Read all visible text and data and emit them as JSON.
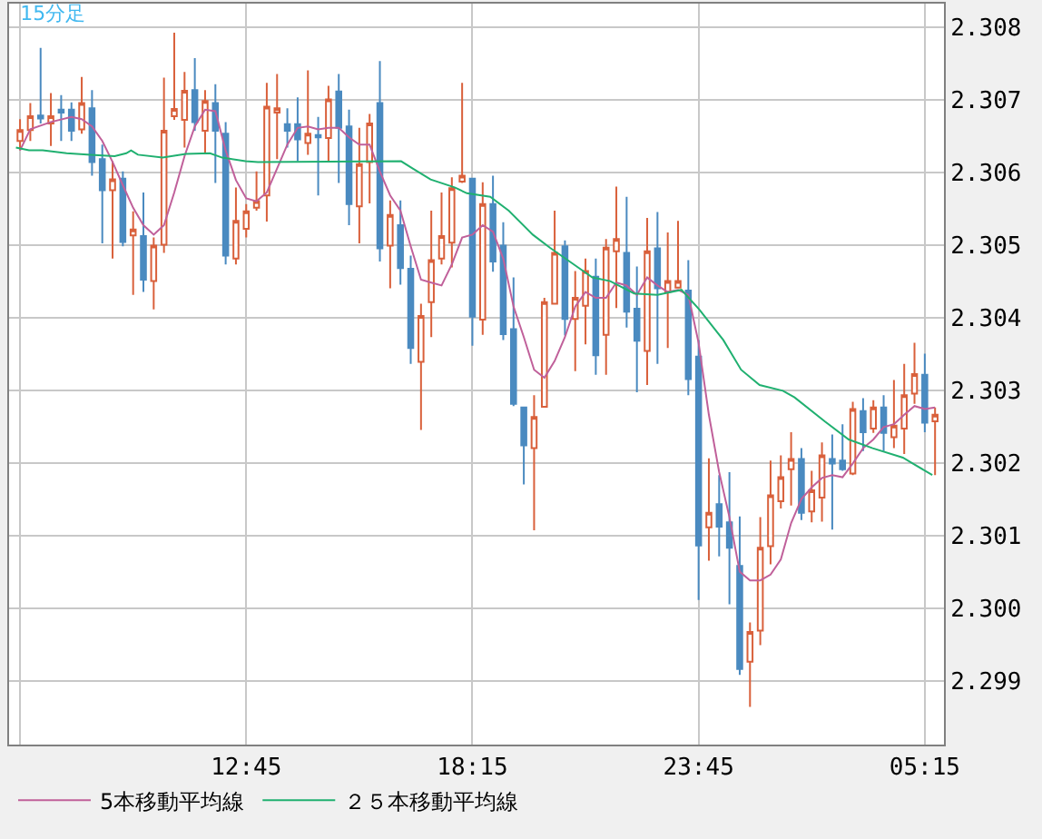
{
  "chart_data": {
    "type": "candlestick",
    "title": "15分足",
    "x": [
      "--01-01T07:15",
      "--01-01T07:30",
      "--01-01T07:45",
      "--01-01T08:00",
      "--01-01T08:15",
      "--01-01T08:30",
      "--01-01T08:45",
      "--01-01T09:00",
      "--01-01T09:15",
      "--01-01T09:30",
      "--01-01T09:45",
      "--01-01T10:00",
      "--01-01T10:15",
      "--01-01T10:30",
      "--01-01T10:45",
      "--01-01T11:00",
      "--01-01T11:15",
      "--01-01T11:30",
      "--01-01T11:45",
      "--01-01T12:00",
      "--01-01T12:15",
      "--01-01T12:30",
      "--01-01T12:45",
      "--01-01T13:00",
      "--01-01T13:15",
      "--01-01T13:30",
      "--01-01T13:45",
      "--01-01T14:00",
      "--01-01T14:15",
      "--01-01T14:30",
      "--01-01T14:45",
      "--01-01T15:00",
      "--01-01T15:15",
      "--01-01T15:30",
      "--01-01T15:45",
      "--01-01T16:00",
      "--01-01T16:15",
      "--01-01T16:30",
      "--01-01T16:45",
      "--01-01T17:00",
      "--01-01T17:15",
      "--01-01T17:30",
      "--01-01T17:45",
      "--01-01T18:00",
      "--01-01T18:15",
      "--01-01T18:30",
      "--01-01T18:45",
      "--01-01T19:00",
      "--01-01T19:15",
      "--01-01T19:30",
      "--01-01T19:45",
      "--01-01T20:00",
      "--01-01T20:15",
      "--01-01T20:30",
      "--01-01T20:45",
      "--01-01T21:00",
      "--01-01T21:15",
      "--01-01T21:30",
      "--01-01T21:45",
      "--01-01T22:00",
      "--01-01T22:15",
      "--01-01T22:30",
      "--01-01T22:45",
      "--01-01T23:00",
      "--01-01T23:15",
      "--01-01T23:30",
      "--01-01T23:45",
      "--01-02T00:00",
      "--01-02T00:15",
      "--01-02T00:30",
      "--01-02T00:45",
      "--01-02T01:00",
      "--01-02T01:15",
      "--01-02T01:30",
      "--01-02T01:45",
      "--01-02T02:00",
      "--01-02T02:15",
      "--01-02T02:30",
      "--01-02T02:45",
      "--01-02T03:00",
      "--01-02T03:15",
      "--01-02T03:30",
      "--01-02T03:45",
      "--01-02T04:00",
      "--01-02T04:15",
      "--01-02T04:30",
      "--01-02T04:45",
      "--01-02T05:00",
      "--01-02T05:15",
      "--01-02T05:30"
    ],
    "ohlc": [
      [
        2.30643,
        2.30673,
        2.3063,
        2.30658
      ],
      [
        2.30658,
        2.30695,
        2.30643,
        2.30677
      ],
      [
        2.30678,
        2.30771,
        2.30667,
        2.30674
      ],
      [
        2.30667,
        2.30709,
        2.30636,
        2.30677
      ],
      [
        2.30686,
        2.30706,
        2.30643,
        2.30682
      ],
      [
        2.30686,
        2.30696,
        2.30643,
        2.30657
      ],
      [
        2.30659,
        2.30731,
        2.30653,
        2.30695
      ],
      [
        2.30688,
        2.30713,
        2.30595,
        2.30614
      ],
      [
        2.30618,
        2.30638,
        2.30502,
        2.30575
      ],
      [
        2.30575,
        2.30615,
        2.30481,
        2.3059
      ],
      [
        2.30591,
        2.30601,
        2.30498,
        2.30504
      ],
      [
        2.30513,
        2.30546,
        2.30431,
        2.30521
      ],
      [
        2.30512,
        2.30572,
        2.30435,
        2.30452
      ],
      [
        2.3045,
        2.3051,
        2.30411,
        2.30499
      ],
      [
        2.305,
        2.3073,
        2.30489,
        2.30657
      ],
      [
        2.30677,
        2.30792,
        2.30672,
        2.30687
      ],
      [
        2.30672,
        2.30738,
        2.30634,
        2.30712
      ],
      [
        2.30713,
        2.30757,
        2.30657,
        2.30669
      ],
      [
        2.30657,
        2.30713,
        2.30626,
        2.30698
      ],
      [
        2.30695,
        2.30721,
        2.30585,
        2.30657
      ],
      [
        2.30653,
        2.30669,
        2.30473,
        2.30485
      ],
      [
        2.30481,
        2.30579,
        2.30473,
        2.30533
      ],
      [
        2.30522,
        2.30556,
        2.3051,
        2.30546
      ],
      [
        2.30551,
        2.30601,
        2.30547,
        2.3056
      ],
      [
        2.30568,
        2.30723,
        2.30532,
        2.3069
      ],
      [
        2.30682,
        2.30735,
        2.30618,
        2.30688
      ],
      [
        2.30666,
        2.30688,
        2.30634,
        2.30657
      ],
      [
        2.30666,
        2.30703,
        2.30615,
        2.30645
      ],
      [
        2.3064,
        2.3074,
        2.30624,
        2.30653
      ],
      [
        2.30651,
        2.30676,
        2.30568,
        2.30648
      ],
      [
        2.30647,
        2.30719,
        2.30614,
        2.307
      ],
      [
        2.30711,
        2.30735,
        2.30585,
        2.30661
      ],
      [
        2.30663,
        2.30686,
        2.30527,
        2.30556
      ],
      [
        2.30553,
        2.30661,
        2.30502,
        2.30611
      ],
      [
        2.30614,
        2.3068,
        2.30557,
        2.30667
      ],
      [
        2.30695,
        2.30753,
        2.30477,
        2.30495
      ],
      [
        2.30499,
        2.30561,
        2.3044,
        2.30541
      ],
      [
        2.30527,
        2.30561,
        2.30445,
        2.30468
      ],
      [
        2.30467,
        2.30485,
        2.30336,
        2.30358
      ],
      [
        2.30339,
        2.30419,
        2.30245,
        2.30402
      ],
      [
        2.30421,
        2.30547,
        2.30373,
        2.30479
      ],
      [
        2.30481,
        2.30572,
        2.30473,
        2.30512
      ],
      [
        2.30503,
        2.30593,
        2.30469,
        2.30578
      ],
      [
        2.30587,
        2.30723,
        2.30585,
        2.30595
      ],
      [
        2.30591,
        2.30592,
        2.30361,
        2.30401
      ],
      [
        2.30397,
        2.30586,
        2.30376,
        2.30556
      ],
      [
        2.30556,
        2.30595,
        2.30463,
        2.30477
      ],
      [
        2.30499,
        2.30531,
        2.30369,
        2.30377
      ],
      [
        2.30384,
        2.30455,
        2.30278,
        2.30281
      ],
      [
        2.30276,
        2.30276,
        2.3017,
        2.30224
      ],
      [
        2.3022,
        2.30293,
        2.30107,
        2.30263
      ],
      [
        2.30277,
        2.30427,
        2.30276,
        2.30421
      ],
      [
        2.30419,
        2.30547,
        2.30419,
        2.30489
      ],
      [
        2.30498,
        2.30506,
        2.30375,
        2.30398
      ],
      [
        2.30398,
        2.30464,
        2.30326,
        2.30427
      ],
      [
        2.30416,
        2.30481,
        2.30363,
        2.30464
      ],
      [
        2.30456,
        2.30481,
        2.30321,
        2.30348
      ],
      [
        2.30376,
        2.30508,
        2.30321,
        2.30496
      ],
      [
        2.30491,
        2.3058,
        2.30413,
        2.30508
      ],
      [
        2.30489,
        2.30566,
        2.30386,
        2.30408
      ],
      [
        2.30412,
        2.3047,
        2.30297,
        2.30368
      ],
      [
        2.30354,
        2.30537,
        2.30307,
        2.30491
      ],
      [
        2.30495,
        2.30545,
        2.30336,
        2.3044
      ],
      [
        2.30435,
        2.30517,
        2.30358,
        2.3045
      ],
      [
        2.30441,
        2.30533,
        2.3044,
        2.3045
      ],
      [
        2.30437,
        2.30479,
        2.30293,
        2.30315
      ],
      [
        2.30346,
        2.30369,
        2.30011,
        2.30086
      ],
      [
        2.30111,
        2.30206,
        2.30065,
        2.30131
      ],
      [
        2.30143,
        2.30183,
        2.30071,
        2.30112
      ],
      [
        2.30118,
        2.30187,
        2.30005,
        2.30083
      ],
      [
        2.30058,
        2.30126,
        2.29908,
        2.29916
      ],
      [
        2.29926,
        2.2998,
        2.29864,
        2.29967
      ],
      [
        2.29969,
        2.30125,
        2.29949,
        2.30083
      ],
      [
        2.30085,
        2.30203,
        2.3006,
        2.30155
      ],
      [
        2.30147,
        2.3021,
        2.30137,
        2.3018
      ],
      [
        2.30191,
        2.30242,
        2.30141,
        2.30205
      ],
      [
        2.30205,
        2.3022,
        2.30121,
        2.30131
      ],
      [
        2.30133,
        2.30189,
        2.30118,
        2.30162
      ],
      [
        2.30152,
        2.30228,
        2.30119,
        2.3021
      ],
      [
        2.30205,
        2.30239,
        2.30108,
        2.30199
      ],
      [
        2.30203,
        2.30253,
        2.30189,
        2.30191
      ],
      [
        2.30185,
        2.30284,
        2.30183,
        2.30274
      ],
      [
        2.30271,
        2.30289,
        2.30216,
        2.30242
      ],
      [
        2.30247,
        2.30286,
        2.30241,
        2.30276
      ],
      [
        2.30276,
        2.30293,
        2.30216,
        2.30241
      ],
      [
        2.30235,
        2.30314,
        2.3022,
        2.30251
      ],
      [
        2.30247,
        2.30336,
        2.30212,
        2.30293
      ],
      [
        2.30295,
        2.30365,
        2.30281,
        2.30322
      ],
      [
        2.30321,
        2.3035,
        2.30242,
        2.30255
      ],
      [
        2.30257,
        2.30276,
        2.30183,
        2.30266
      ]
    ],
    "colors": [
      "#d9603b",
      "#d9603b",
      "#4a8ac0",
      "#d9603b",
      "#4a8ac0",
      "#4a8ac0",
      "#d9603b",
      "#4a8ac0",
      "#4a8ac0",
      "#d9603b",
      "#4a8ac0",
      "#d9603b",
      "#4a8ac0",
      "#d9603b",
      "#d9603b",
      "#d9603b",
      "#d9603b",
      "#4a8ac0",
      "#d9603b",
      "#4a8ac0",
      "#4a8ac0",
      "#d9603b",
      "#d9603b",
      "#d9603b",
      "#d9603b",
      "#d9603b",
      "#4a8ac0",
      "#4a8ac0",
      "#d9603b",
      "#4a8ac0",
      "#d9603b",
      "#4a8ac0",
      "#4a8ac0",
      "#d9603b",
      "#d9603b",
      "#4a8ac0",
      "#d9603b",
      "#4a8ac0",
      "#4a8ac0",
      "#d9603b",
      "#d9603b",
      "#d9603b",
      "#d9603b",
      "#d9603b",
      "#4a8ac0",
      "#d9603b",
      "#4a8ac0",
      "#4a8ac0",
      "#4a8ac0",
      "#4a8ac0",
      "#d9603b",
      "#d9603b",
      "#d9603b",
      "#4a8ac0",
      "#d9603b",
      "#d9603b",
      "#4a8ac0",
      "#d9603b",
      "#d9603b",
      "#4a8ac0",
      "#4a8ac0",
      "#d9603b",
      "#4a8ac0",
      "#d9603b",
      "#d9603b",
      "#4a8ac0",
      "#4a8ac0",
      "#d9603b",
      "#4a8ac0",
      "#4a8ac0",
      "#4a8ac0",
      "#d9603b",
      "#d9603b",
      "#d9603b",
      "#d9603b",
      "#d9603b",
      "#4a8ac0",
      "#d9603b",
      "#d9603b",
      "#4a8ac0",
      "#4a8ac0",
      "#d9603b",
      "#4a8ac0",
      "#d9603b",
      "#4a8ac0",
      "#d9603b",
      "#d9603b",
      "#d9603b",
      "#4a8ac0",
      "#d9603b"
    ],
    "series": [
      {
        "type": "line",
        "name": "5本移動平均線",
        "color": "#c0609a",
        "x": [
          "--01-01T07:15",
          "--01-01T07:30",
          "--01-01T08:00",
          "--01-01T08:30",
          "--01-01T08:45",
          "--01-01T09:00",
          "--01-01T09:15",
          "--01-01T09:30",
          "--01-01T09:45",
          "--01-01T10:00",
          "--01-01T10:15",
          "--01-01T10:30",
          "--01-01T10:45",
          "--01-01T11:00",
          "--01-01T11:15",
          "--01-01T11:30",
          "--01-01T11:45",
          "--01-01T12:00",
          "--01-01T12:15",
          "--01-01T12:30",
          "--01-01T12:45",
          "--01-01T13:00",
          "--01-01T13:15",
          "--01-01T13:30",
          "--01-01T13:45",
          "--01-01T14:00",
          "--01-01T14:15",
          "--01-01T14:30",
          "--01-01T14:45",
          "--01-01T15:00",
          "--01-01T15:15",
          "--01-01T15:30",
          "--01-01T15:45",
          "--01-01T16:00",
          "--01-01T16:15",
          "--01-01T16:30",
          "--01-01T16:45",
          "--01-01T17:00",
          "--01-01T17:15",
          "--01-01T17:30",
          "--01-01T17:45",
          "--01-01T18:00",
          "--01-01T18:15",
          "--01-01T18:30",
          "--01-01T18:45",
          "--01-01T19:00",
          "--01-01T19:15",
          "--01-01T19:30",
          "--01-01T19:45",
          "--01-01T20:00",
          "--01-01T20:15",
          "--01-01T20:30",
          "--01-01T20:45",
          "--01-01T21:00",
          "--01-01T21:15",
          "--01-01T21:30",
          "--01-01T21:45",
          "--01-01T22:00",
          "--01-01T22:15",
          "--01-01T22:30",
          "--01-01T22:45",
          "--01-01T23:00",
          "--01-01T23:15",
          "--01-01T23:30",
          "--01-01T23:45",
          "--01-02T00:00",
          "--01-02T00:15",
          "--01-02T00:30",
          "--01-02T00:45",
          "--01-02T01:00",
          "--01-02T01:15",
          "--01-02T01:30",
          "--01-02T01:45",
          "--01-02T02:00",
          "--01-02T02:15",
          "--01-02T02:30",
          "--01-02T02:45",
          "--01-02T03:00",
          "--01-02T03:15",
          "--01-02T03:30",
          "--01-02T03:45",
          "--01-02T04:00",
          "--01-02T04:15",
          "--01-02T04:30",
          "--01-02T04:45",
          "--01-02T05:00",
          "--01-02T05:15",
          "--01-02T05:30"
        ],
        "values": [
          2.3063,
          2.30659,
          2.30669,
          2.30676,
          2.30673,
          2.30663,
          2.30643,
          2.30614,
          2.30582,
          2.30551,
          2.30527,
          2.30514,
          2.30527,
          2.30572,
          2.30622,
          2.30663,
          2.30686,
          2.30684,
          2.3063,
          2.30589,
          2.30564,
          2.3056,
          2.30572,
          2.30605,
          2.30638,
          2.30661,
          2.30663,
          2.30659,
          2.30661,
          2.30661,
          2.30648,
          2.30638,
          2.30638,
          2.30601,
          2.30568,
          2.30547,
          2.30498,
          2.30452,
          2.30448,
          2.30444,
          2.30473,
          2.3051,
          2.30514,
          2.30527,
          2.30518,
          2.30481,
          2.30415,
          2.30373,
          2.30328,
          2.30317,
          2.3034,
          2.30373,
          2.30415,
          2.30435,
          2.30427,
          2.30427,
          2.30448,
          2.30444,
          2.30431,
          2.30455,
          2.30444,
          2.30435,
          2.30438,
          2.30431,
          2.30365,
          2.30266,
          2.30187,
          2.30125,
          2.3005,
          2.30038,
          2.30038,
          2.30046,
          2.30067,
          2.30117,
          2.3015,
          2.30166,
          2.30179,
          2.30183,
          2.3018,
          2.30199,
          2.3022,
          2.30232,
          2.30249,
          2.30253,
          2.30266,
          2.30278,
          2.30274,
          2.30276
        ]
      },
      {
        "type": "line",
        "name": "２５本移動平均線",
        "color": "#20b070",
        "x": [
          "--01-01T07:09",
          "--01-01T07:28",
          "--01-01T07:48",
          "--01-01T08:23",
          "--01-01T08:58",
          "--01-01T09:33",
          "--01-01T09:50",
          "--01-01T09:57",
          "--01-01T10:07",
          "--01-01T10:43",
          "--01-01T11:17",
          "--01-01T11:52",
          "--01-01T12:10",
          "--01-01T12:44",
          "--01-01T13:02",
          "--01-01T16:31",
          "--01-01T16:48",
          "--01-01T17:14",
          "--01-01T17:49",
          "--01-01T18:07",
          "--01-01T18:41",
          "--01-01T19:08",
          "--01-01T19:43",
          "--01-01T20:08",
          "--01-01T20:43",
          "--01-01T21:10",
          "--01-01T21:36",
          "--01-01T22:11",
          "--01-01T22:45",
          "--01-01T23:20",
          "--01-01T23:46",
          "--01-02T00:21",
          "--01-02T00:47",
          "--01-02T01:14",
          "--01-02T01:48",
          "--01-02T02:05",
          "--01-02T02:49",
          "--01-02T03:24",
          "--01-02T03:59",
          "--01-02T04:43",
          "--01-02T05:26"
        ],
        "values": [
          2.30634,
          2.3063,
          2.3063,
          2.30626,
          2.30624,
          2.30622,
          2.30626,
          2.3063,
          2.30624,
          2.3062,
          2.30625,
          2.30626,
          2.3062,
          2.30615,
          2.30614,
          2.30615,
          2.30605,
          2.3059,
          2.30579,
          2.30571,
          2.30566,
          2.30547,
          2.30514,
          2.30496,
          2.30473,
          2.30455,
          2.3045,
          2.30433,
          2.30431,
          2.30438,
          2.30411,
          2.30369,
          2.30328,
          2.30307,
          2.30299,
          2.3029,
          2.30257,
          2.30232,
          2.3022,
          2.30207,
          2.30183
        ]
      }
    ],
    "xlim": [
      "--01-01T06:59",
      "--01-02T05:43"
    ],
    "xticks": [
      {
        "value": "--01-01T07:15",
        "label": null
      },
      {
        "value": "--01-01T12:45",
        "label": "12:45"
      },
      {
        "value": "--01-01T18:15",
        "label": "18:15"
      },
      {
        "value": "--01-01T23:45",
        "label": "23:45"
      },
      {
        "value": "--01-02T05:15",
        "label": "05:15"
      }
    ],
    "ylim": [
      2.29812,
      2.30832
    ],
    "yticks": [
      {
        "value": 2.299,
        "label": "2.299"
      },
      {
        "value": 2.3,
        "label": "2.300"
      },
      {
        "value": 2.301,
        "label": "2.301"
      },
      {
        "value": 2.302,
        "label": "2.302"
      },
      {
        "value": 2.303,
        "label": "2.303"
      },
      {
        "value": 2.304,
        "label": "2.304"
      },
      {
        "value": 2.305,
        "label": "2.305"
      },
      {
        "value": 2.306,
        "label": "2.306"
      },
      {
        "value": 2.307,
        "label": "2.307"
      },
      {
        "value": 2.308,
        "label": "2.308"
      }
    ],
    "grid": true,
    "legend": "bottom"
  }
}
